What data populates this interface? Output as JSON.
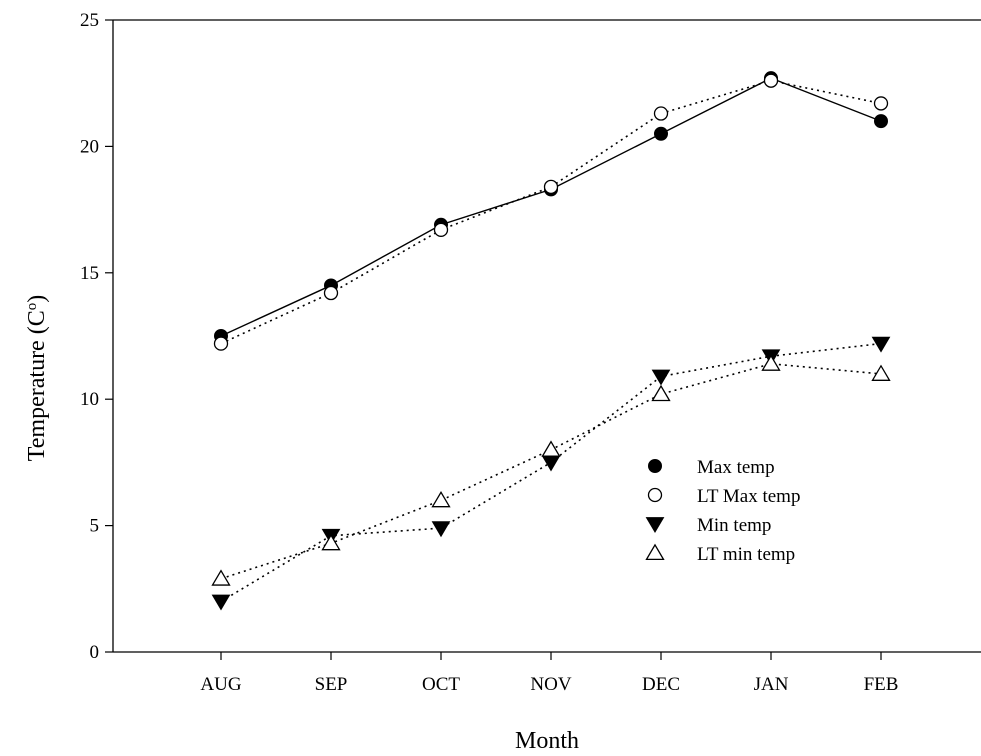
{
  "chart_data": {
    "type": "line",
    "title": "",
    "xlabel": "Month",
    "ylabel": "Temperature (C",
    "ylabel_superscript": "o",
    "ylabel_suffix": ")",
    "categories": [
      "AUG",
      "SEP",
      "OCT",
      "NOV",
      "DEC",
      "JAN",
      "FEB"
    ],
    "ylim": [
      0,
      25
    ],
    "yticks": [
      0,
      5,
      10,
      15,
      20,
      25
    ],
    "grid": false,
    "legend_position": "center-right",
    "series": [
      {
        "name": "Max temp",
        "marker": "circle-filled",
        "line": "solid",
        "values": [
          12.5,
          14.5,
          16.9,
          18.3,
          20.5,
          22.7,
          21.0
        ]
      },
      {
        "name": "LT Max temp",
        "marker": "circle-open",
        "line": "dotted",
        "values": [
          12.2,
          14.2,
          16.7,
          18.4,
          21.3,
          22.6,
          21.7
        ]
      },
      {
        "name": "Min temp",
        "marker": "triangle-down-filled",
        "line": "dotted",
        "values": [
          2.0,
          4.6,
          4.9,
          7.5,
          10.9,
          11.7,
          12.2
        ]
      },
      {
        "name": "LT min temp",
        "marker": "triangle-up-open",
        "line": "dotted",
        "values": [
          2.9,
          4.3,
          6.0,
          8.0,
          10.2,
          11.4,
          11.0
        ]
      }
    ]
  }
}
